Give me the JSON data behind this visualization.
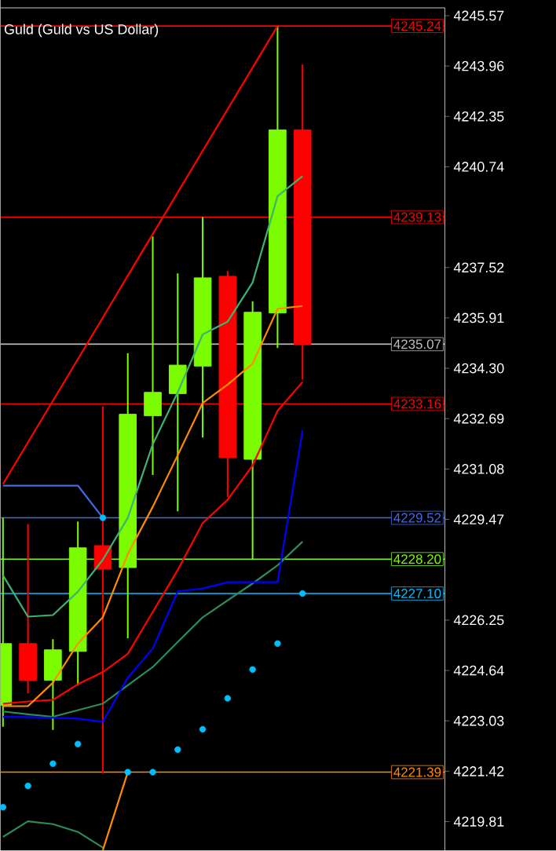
{
  "chart_data": {
    "type": "candlestick",
    "title": "Guld (Guld vs US Dollar)",
    "categories": [
      null,
      null,
      null,
      null,
      null,
      null,
      null,
      null,
      null,
      null,
      null,
      null,
      null
    ],
    "ohlc": [
      [
        4223.53,
        4229.52,
        4222.84,
        4225.5
      ],
      [
        4225.5,
        4229.32,
        4223.91,
        4224.33
      ],
      [
        4224.33,
        4225.64,
        4222.74,
        4225.3
      ],
      [
        4225.25,
        4229.4,
        4224.16,
        4228.56
      ],
      [
        4228.63,
        4233.08,
        4221.36,
        4227.88
      ],
      [
        4227.93,
        4234.78,
        4225.67,
        4232.83
      ],
      [
        4232.78,
        4238.51,
        4230.89,
        4233.53
      ],
      [
        4233.49,
        4237.33,
        4229.73,
        4234.4
      ],
      [
        4234.37,
        4239.13,
        4232.09,
        4237.19
      ],
      [
        4237.24,
        4237.41,
        4230.18,
        4231.44
      ],
      [
        4231.39,
        4236.44,
        4228.2,
        4236.09
      ],
      [
        4236.07,
        4245.24,
        4234.95,
        4241.92
      ],
      [
        4241.92,
        4244.01,
        4233.94,
        4235.07
      ]
    ],
    "colors": [
      "#7cfc00",
      "#ff0000",
      "#7cfc00",
      "#7cfc00",
      "#ff0000",
      "#7cfc00",
      "#7cfc00",
      "#7cfc00",
      "#7cfc00",
      "#ff0000",
      "#7cfc00",
      "#7cfc00",
      "#ff0000"
    ],
    "series": [
      {
        "type": "line",
        "color": "#ff0000",
        "values": [
          4230.6,
          4231.93,
          4233.26,
          4234.59,
          4235.92,
          4237.26,
          4238.59,
          4239.92,
          4241.25,
          4242.58,
          4243.91,
          4245.24,
          null
        ]
      },
      {
        "type": "line",
        "color": "#2e8b57",
        "values": [
          4219.32,
          4219.82,
          4219.73,
          4219.48,
          4218.98,
          null,
          null,
          null,
          null,
          null,
          null,
          null,
          null
        ]
      },
      {
        "type": "line",
        "color": "#2e8b57",
        "values": [
          4223.33,
          4223.24,
          4223.16,
          4223.37,
          4223.58,
          4224.17,
          4224.75,
          4225.55,
          4226.34,
          4226.88,
          4227.42,
          4228.0,
          4228.76
        ]
      },
      {
        "type": "line",
        "color": "#3cb371",
        "values": [
          4227.68,
          4226.36,
          4226.41,
          4227.16,
          4228.18,
          4229.52,
          4231.87,
          4233.53,
          4235.38,
          4235.79,
          4237.04,
          4239.8,
          4240.44
        ]
      },
      {
        "type": "line",
        "color": "#0000ff",
        "values": [
          4223.16,
          4223.15,
          4223.13,
          4223.1,
          4223.0,
          4224.41,
          4225.34,
          4227.17,
          4227.26,
          4227.46,
          4227.46,
          4227.46,
          4232.31
        ]
      },
      {
        "type": "line",
        "color": "#4169e1",
        "values": [
          4230.55,
          4230.55,
          4230.55,
          4230.55,
          4229.52,
          null,
          null,
          null,
          null,
          null,
          null,
          null,
          null
        ]
      },
      {
        "type": "line",
        "color": "#ff8c00",
        "values": [
          null,
          null,
          null,
          null,
          4218.9,
          4221.39,
          null,
          null,
          null,
          null,
          null,
          null,
          null
        ]
      },
      {
        "type": "line",
        "color": "#ff0000",
        "values": [
          4223.58,
          4223.65,
          4223.7,
          4224.2,
          4224.59,
          4225.17,
          4226.51,
          4227.85,
          4229.35,
          4230.1,
          4231.19,
          4232.94,
          4233.86
        ]
      },
      {
        "type": "line",
        "color": "#ff8c00",
        "values": [
          4223.5,
          4223.5,
          4224.25,
          4225.5,
          4226.34,
          4228.36,
          4229.87,
          4231.52,
          4233.19,
          4233.78,
          4234.45,
          4236.2,
          4236.29
        ]
      },
      {
        "type": "scatter",
        "color": "#00bfff",
        "values": [
          4220.27,
          4220.95,
          4221.66,
          4222.29,
          4229.52,
          4221.39,
          4221.39,
          4222.11,
          4222.76,
          4223.75,
          4224.67,
          4225.5,
          4227.1
        ]
      }
    ],
    "ref_lines": [
      {
        "axis": "y",
        "value": 4245.24,
        "label": "4245.24",
        "color": "#ff0000"
      },
      {
        "axis": "y",
        "value": 4239.13,
        "label": "4239.13",
        "color": "#ff0000"
      },
      {
        "axis": "y",
        "value": 4235.07,
        "label": "4235.07",
        "color": "#c0c0c0"
      },
      {
        "axis": "y",
        "value": 4233.16,
        "label": "4233.16",
        "color": "#ff0000"
      },
      {
        "axis": "y",
        "value": 4229.52,
        "label": "4229.52",
        "color": "#4169e1"
      },
      {
        "axis": "y",
        "value": 4228.2,
        "label": "4228.20",
        "color": "#7cfc00"
      },
      {
        "axis": "y",
        "value": 4227.1,
        "label": "4227.10",
        "color": "#00bfff"
      },
      {
        "axis": "y",
        "value": 4221.39,
        "label": "4221.39",
        "color": "#ff8c00"
      }
    ],
    "ylim": [
      4218.88,
      4245.82
    ],
    "yticks": [
      {
        "value": 4245.57,
        "label": "4245.57"
      },
      {
        "value": 4243.96,
        "label": "4243.96"
      },
      {
        "value": 4242.35,
        "label": "4242.35"
      },
      {
        "value": 4240.74,
        "label": "4240.74"
      },
      {
        "value": 4237.52,
        "label": "4237.52"
      },
      {
        "value": 4235.91,
        "label": "4235.91"
      },
      {
        "value": 4234.3,
        "label": "4234.30"
      },
      {
        "value": 4232.69,
        "label": "4232.69"
      },
      {
        "value": 4231.08,
        "label": "4231.08"
      },
      {
        "value": 4229.47,
        "label": "4229.47"
      },
      {
        "value": 4226.25,
        "label": "4226.25"
      },
      {
        "value": 4224.64,
        "label": "4224.64"
      },
      {
        "value": 4223.03,
        "label": "4223.03"
      },
      {
        "value": 4221.42,
        "label": "4221.42"
      },
      {
        "value": 4219.81,
        "label": "4219.81"
      }
    ],
    "tick_labels": "y"
  }
}
